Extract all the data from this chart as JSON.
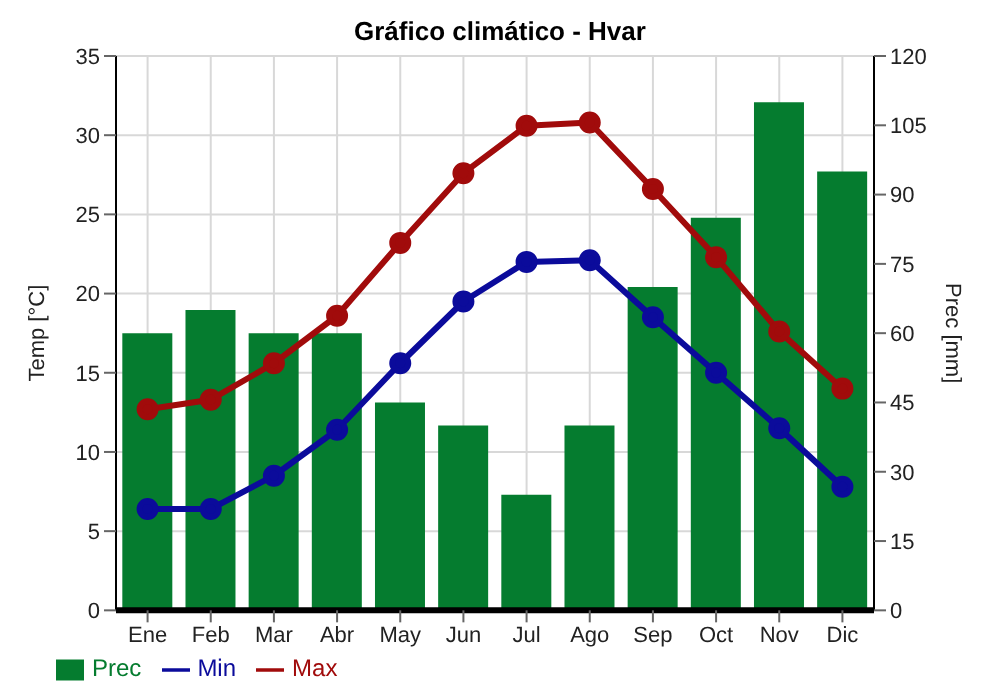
{
  "chart_data": {
    "type": "bar",
    "title": "Gráfico climático - Hvar",
    "ylabel": "Temp [°C]",
    "y2label": "Prec [mm]",
    "categories": [
      "Ene",
      "Feb",
      "Mar",
      "Abr",
      "May",
      "Jun",
      "Jul",
      "Ago",
      "Sep",
      "Oct",
      "Nov",
      "Dic"
    ],
    "series": [
      {
        "name": "Prec",
        "axis": "y2",
        "color": "#057c2f",
        "values": [
          60,
          65,
          60,
          60,
          45,
          40,
          25,
          40,
          70,
          85,
          110,
          95
        ]
      },
      {
        "name": "Min",
        "type": "line",
        "color": "#0b0b9b",
        "values": [
          6.4,
          6.4,
          8.5,
          11.4,
          15.6,
          19.5,
          22,
          22.1,
          18.5,
          15,
          11.5,
          7.8
        ]
      },
      {
        "name": "Max",
        "type": "line",
        "color": "#a10b0b",
        "values": [
          12.7,
          13.3,
          15.6,
          18.6,
          23.2,
          27.6,
          30.6,
          30.8,
          26.6,
          22.3,
          17.6,
          14.0
        ]
      }
    ],
    "ylim": [
      0,
      35
    ],
    "yticks": [
      0,
      5,
      10,
      15,
      20,
      25,
      30,
      35
    ],
    "y2lim": [
      0,
      120
    ],
    "y2ticks": [
      0,
      15,
      30,
      45,
      60,
      75,
      90,
      105,
      120
    ],
    "grid": true,
    "legend": "bottom left",
    "marker": "circle",
    "line_style": "solid"
  }
}
